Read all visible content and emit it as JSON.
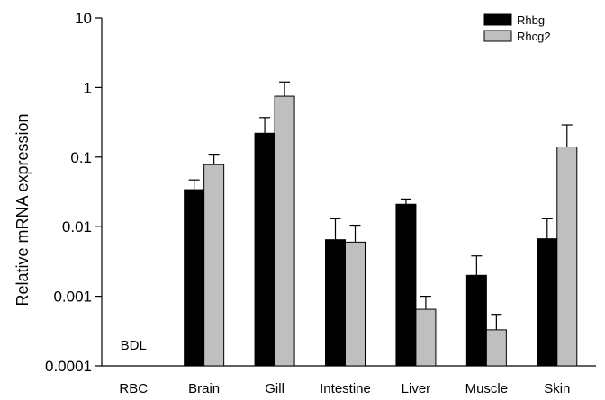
{
  "chart_data": {
    "type": "bar",
    "title": "",
    "xlabel": "",
    "ylabel": "Relative mRNA expression",
    "yscale": "log",
    "ylim": [
      0.0001,
      10
    ],
    "yticks": [
      {
        "value": 10,
        "label": "10"
      },
      {
        "value": 1,
        "label": "1"
      },
      {
        "value": 0.1,
        "label": "0.1"
      },
      {
        "value": 0.01,
        "label": "0.01"
      },
      {
        "value": 0.001,
        "label": "0.001"
      },
      {
        "value": 0.0001,
        "label": "0.0001"
      }
    ],
    "categories": [
      "RBC",
      "Brain",
      "Gill",
      "Intestine",
      "Liver",
      "Muscle",
      "Skin"
    ],
    "series": [
      {
        "name": "Rhbg",
        "color": "#000000",
        "values": [
          null,
          0.034,
          0.22,
          0.0065,
          0.021,
          0.002,
          0.0067
        ],
        "error_upper": [
          null,
          0.047,
          0.37,
          0.013,
          0.025,
          0.0038,
          0.013
        ]
      },
      {
        "name": "Rhcg2",
        "color": "#bfbfbf",
        "values": [
          null,
          0.078,
          0.75,
          0.006,
          0.00065,
          0.00033,
          0.14
        ],
        "error_upper": [
          null,
          0.11,
          1.2,
          0.0105,
          0.001,
          0.00055,
          0.29
        ]
      }
    ],
    "annotations": [
      {
        "category": "RBC",
        "text": "BDL"
      }
    ],
    "legend": {
      "position": "top-right"
    },
    "grid": false
  }
}
